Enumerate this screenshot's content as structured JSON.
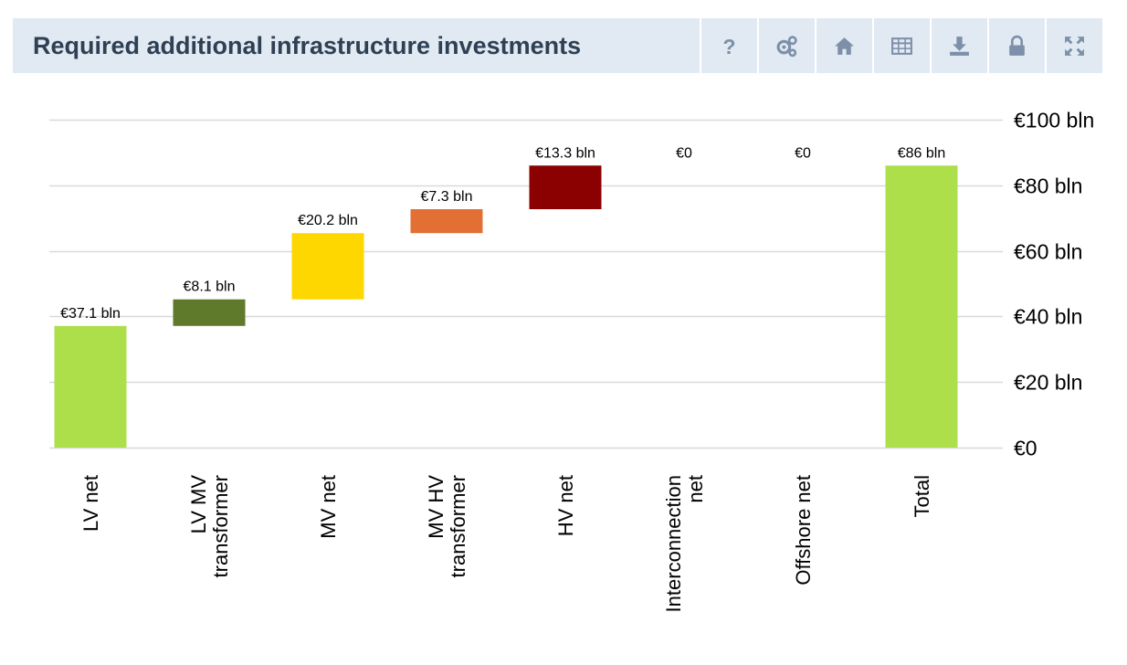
{
  "header": {
    "title": "Required additional infrastructure investments",
    "tools": [
      {
        "name": "help-icon",
        "icon": "help-icon"
      },
      {
        "name": "settings-icon",
        "icon": "gears-icon"
      },
      {
        "name": "home-icon",
        "icon": "home-icon"
      },
      {
        "name": "table-icon",
        "icon": "table-icon"
      },
      {
        "name": "download-icon",
        "icon": "download-icon"
      },
      {
        "name": "lock-icon",
        "icon": "lock-icon"
      },
      {
        "name": "fullscreen-icon",
        "icon": "expand-icon"
      }
    ],
    "icon_color": "#7d8fa9",
    "bar_color": "#e1e9f3"
  },
  "chart_data": {
    "type": "waterfall",
    "title": "Required additional infrastructure investments",
    "categories": [
      [
        "LV net"
      ],
      [
        "LV MV",
        "transformer"
      ],
      [
        "MV net"
      ],
      [
        "MV HV",
        "transformer"
      ],
      [
        "HV net"
      ],
      [
        "Interconnection",
        "net"
      ],
      [
        "Offshore net"
      ],
      [
        "Total"
      ]
    ],
    "values": [
      37.1,
      8.1,
      20.2,
      7.3,
      13.3,
      0,
      0,
      86
    ],
    "labels": [
      "€37.1 bln",
      "€8.1 bln",
      "€20.2 bln",
      "€7.3 bln",
      "€13.3 bln",
      "€0",
      "€0",
      "€86 bln"
    ],
    "is_total": [
      false,
      false,
      false,
      false,
      false,
      false,
      false,
      true
    ],
    "colors": [
      "#addf4a",
      "#5e7a2a",
      "#ffd700",
      "#e26f34",
      "#8b0000",
      "#cccccc",
      "#cccccc",
      "#addf4a"
    ],
    "ylim": [
      0,
      100
    ],
    "yticks": [
      0,
      20,
      40,
      60,
      80,
      100
    ],
    "ytick_labels": [
      "€0",
      "€20 bln",
      "€40 bln",
      "€60 bln",
      "€80 bln",
      "€100 bln"
    ],
    "axis_position": "right",
    "grid": true
  }
}
